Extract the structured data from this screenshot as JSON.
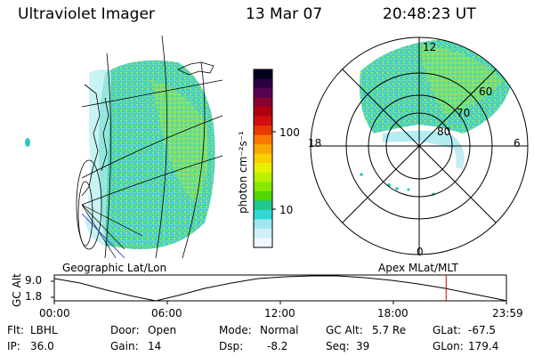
{
  "header": {
    "instrument": "Ultraviolet Imager",
    "date": "13 Mar 07",
    "time": "20:48:23 UT"
  },
  "colorbar": {
    "label": "photon cm⁻²s⁻¹",
    "ticks": [
      "100",
      "10"
    ],
    "colors": [
      "#000020",
      "#2a0040",
      "#5a0050",
      "#8a0030",
      "#b00010",
      "#d01010",
      "#e83a00",
      "#f87800",
      "#f8a800",
      "#f8d000",
      "#e8f000",
      "#b8f000",
      "#88e800",
      "#50d800",
      "#20c890",
      "#30d8d8",
      "#a0e8f0",
      "#d0f0f8",
      "#f0f8ff"
    ]
  },
  "panels": {
    "left_label": "Geographic Lat/Lon",
    "right_label": "Apex MLat/MLT"
  },
  "polar": {
    "mlt_labels": {
      "top": "12",
      "left": "18",
      "right": "6",
      "bottom": "0"
    },
    "lat_labels": [
      "60",
      "70",
      "80"
    ]
  },
  "altitude_plot": {
    "ylabel": "GC Alt",
    "yticks": [
      "9.0",
      "1.8"
    ],
    "xticks": [
      "00:00",
      "06:00",
      "12:00",
      "18:00",
      "23:59"
    ],
    "marker_time_hours": 20.8,
    "marker_color": "#cc0000"
  },
  "info": {
    "filter_label": "Flt:",
    "filter_value": "LBHL",
    "ip_label": "IP:",
    "ip_value": "36.0",
    "door_label": "Door:",
    "door_value": "Open",
    "gain_label": "Gain:",
    "gain_value": "14",
    "mode_label": "Mode:",
    "mode_value": "Normal",
    "dsp_label": "Dsp:",
    "dsp_value": "-8.2",
    "gcalt_label": "GC Alt:",
    "gcalt_value": "5.7 Re",
    "seq_label": "Seq:",
    "seq_value": "39",
    "glat_label": "GLat:",
    "glat_value": "-67.5",
    "glon_label": "GLon:",
    "glon_value": "179.4"
  }
}
